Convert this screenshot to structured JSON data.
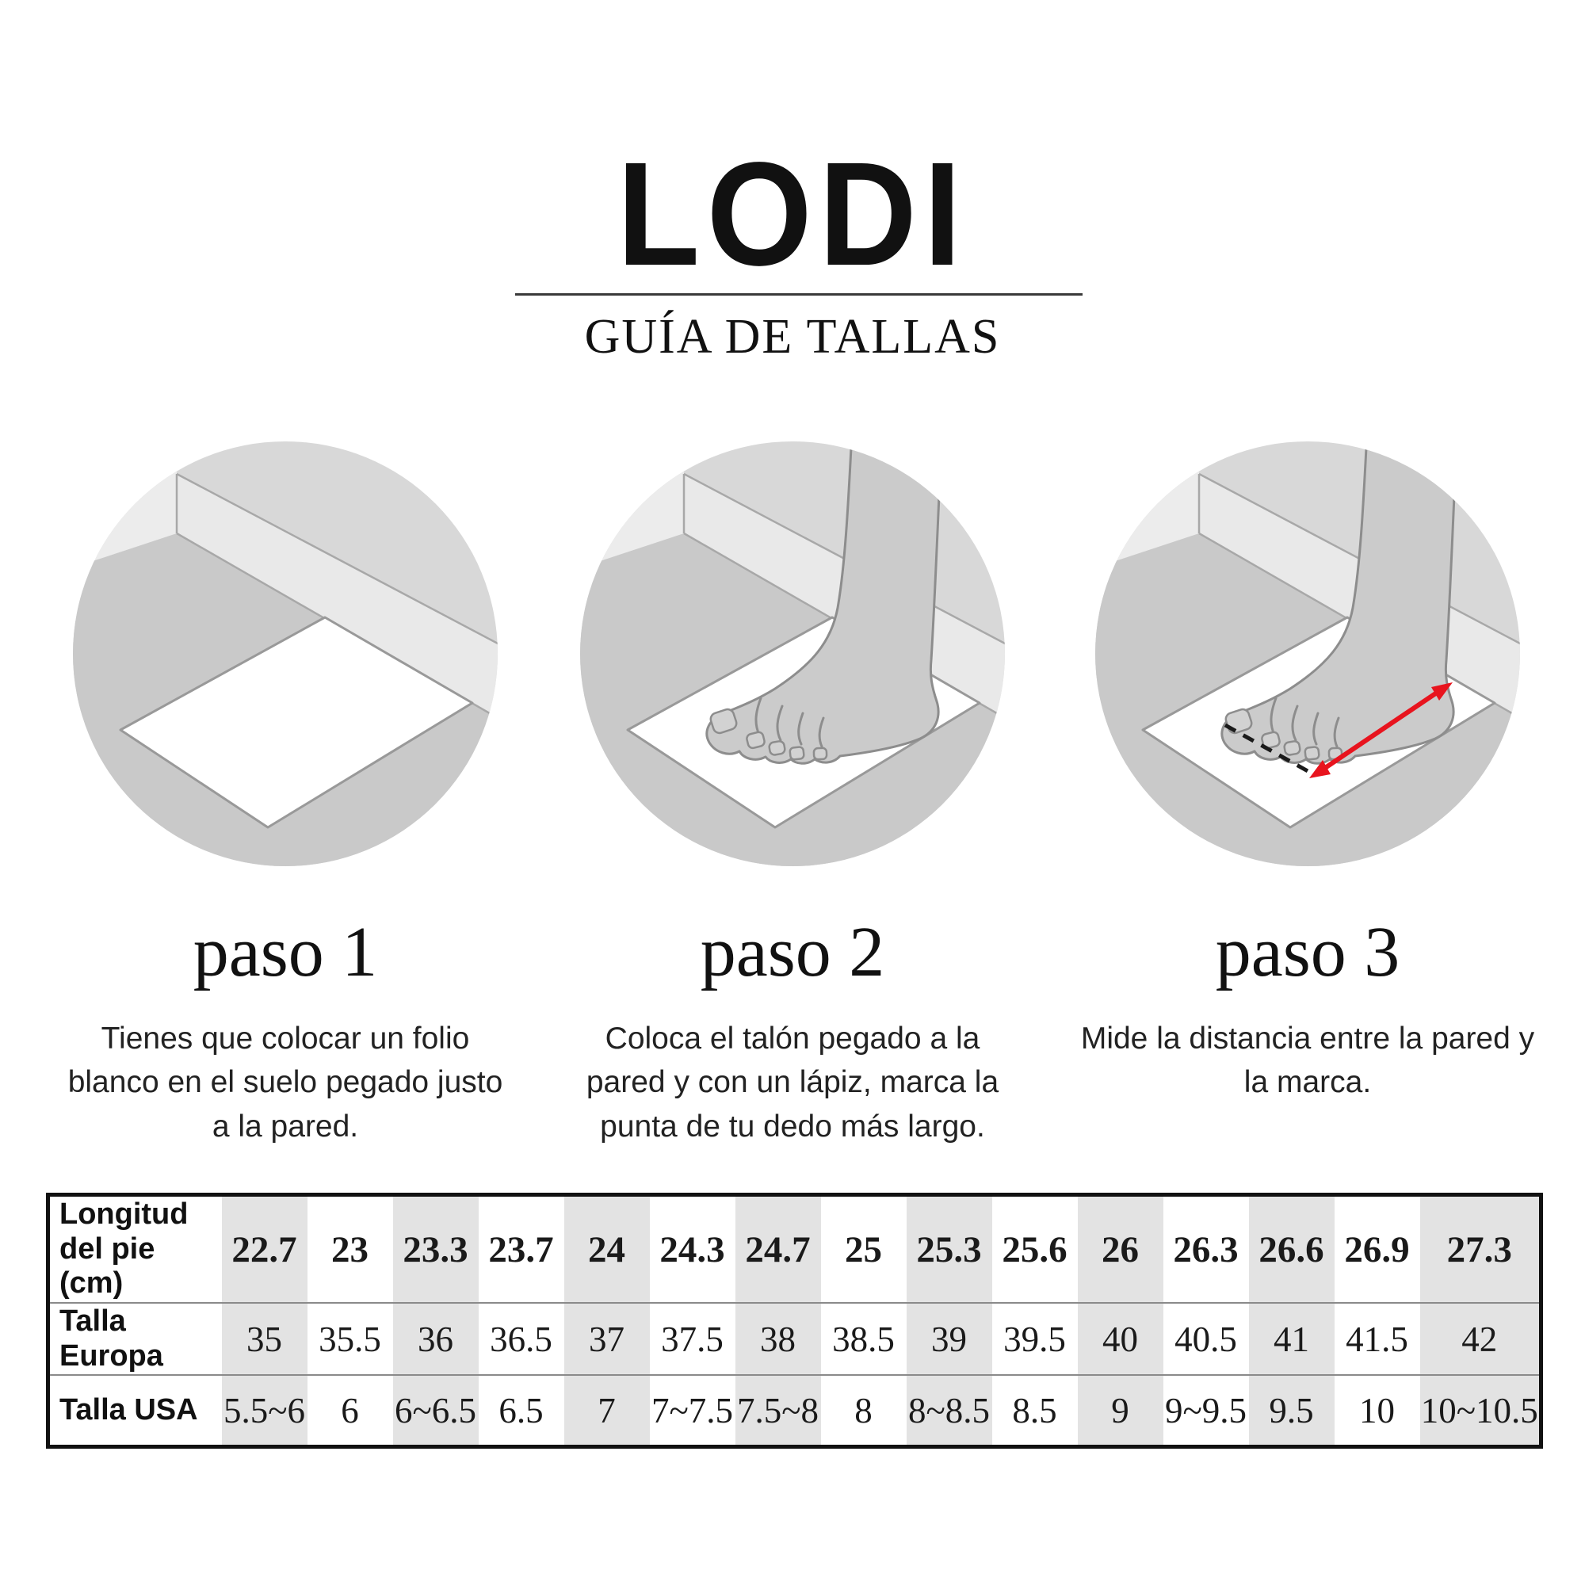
{
  "header": {
    "brand": "LODI",
    "subtitle": "GUÍA DE TALLAS"
  },
  "steps": [
    {
      "title": "paso 1",
      "description": "Tienes que colocar un folio\nblanco en el suelo pegado justo\na la pared.",
      "illustration": "paper-sheet-against-wall"
    },
    {
      "title": "paso 2",
      "description": "Coloca el talón pegado a la\npared y con un lápiz, marca la\npunta de tu dedo más largo.",
      "illustration": "foot-on-paper-heel-to-wall"
    },
    {
      "title": "paso 3",
      "description": "Mide la distancia entre la pared y\nla marca.",
      "illustration": "measure-distance-red-arrow"
    }
  ],
  "size_table": {
    "row_headers": [
      "Longitud\ndel pie (cm)",
      "Talla Europa",
      "Talla USA"
    ],
    "foot_length_cm": [
      "22.7",
      "23",
      "23.3",
      "23.7",
      "24",
      "24.3",
      "24.7",
      "25",
      "25.3",
      "25.6",
      "26",
      "26.3",
      "26.6",
      "26.9",
      "27.3"
    ],
    "talla_europa": [
      "35",
      "35.5",
      "36",
      "36.5",
      "37",
      "37.5",
      "38",
      "38.5",
      "39",
      "39.5",
      "40",
      "40.5",
      "41",
      "41.5",
      "42"
    ],
    "talla_usa": [
      "5.5~6",
      "6",
      "6~6.5",
      "6.5",
      "7",
      "7~7.5",
      "7.5~8",
      "8",
      "8~8.5",
      "8.5",
      "9",
      "9~9.5",
      "9.5",
      "10",
      "10~10.5"
    ]
  },
  "colors": {
    "accent_red": "#e8141e",
    "shaded_column": "#e3e3e3",
    "circle_background": "#d8d8d8",
    "floor": "#c9c9c9",
    "wall": "#e9e9e9",
    "text": "#1a1a1a"
  }
}
